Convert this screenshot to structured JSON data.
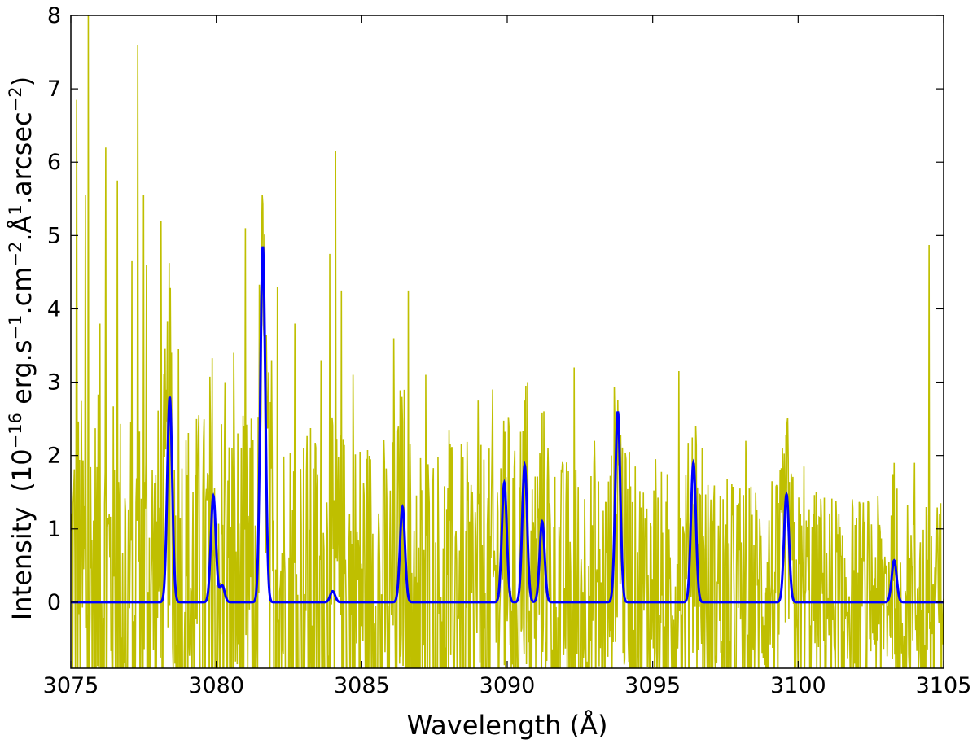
{
  "chart_data": {
    "type": "line",
    "title": "",
    "xlim": [
      3075,
      3105
    ],
    "ylim": [
      -0.9,
      8
    ],
    "xticks": [
      3075,
      3080,
      3085,
      3090,
      3095,
      3100,
      3105
    ],
    "yticks": [
      0,
      1,
      2,
      3,
      4,
      5,
      6,
      7,
      8
    ],
    "xticklabels": [
      "3075",
      "3080",
      "3085",
      "3090",
      "3095",
      "3100",
      "3105"
    ],
    "yticklabels": [
      "0",
      "1",
      "2",
      "3",
      "4",
      "5",
      "6",
      "7",
      "8"
    ],
    "xlabel": "Wavelength (Å)",
    "ylabel": {
      "intensity": "Intensity",
      "open_paren": "(10",
      "exp16": "−16",
      "erg": " erg.s",
      "exp1a": "−1",
      "cm": ".cm",
      "exp2a": "−2",
      "angstrom": ".Å",
      "exp1b": "1",
      "arcsec": ".arcsec",
      "exp2b": "−2",
      "close_paren": ")"
    },
    "grid": false,
    "colors": {
      "observed": "#bfbf00",
      "model": "#0000ff"
    },
    "observed_spikes": [
      {
        "x": 3075.2,
        "y": 6.85
      },
      {
        "x": 3075.5,
        "y": 5.55
      },
      {
        "x": 3075.6,
        "y": 8.0
      },
      {
        "x": 3076.0,
        "y": 3.8
      },
      {
        "x": 3076.2,
        "y": 6.2
      },
      {
        "x": 3076.6,
        "y": 5.75
      },
      {
        "x": 3077.1,
        "y": 4.65
      },
      {
        "x": 3077.3,
        "y": 7.6
      },
      {
        "x": 3077.5,
        "y": 5.55
      },
      {
        "x": 3077.6,
        "y": 4.6
      },
      {
        "x": 3078.1,
        "y": 5.2
      },
      {
        "x": 3078.7,
        "y": 3.45
      },
      {
        "x": 3079.4,
        "y": 2.55
      },
      {
        "x": 3080.3,
        "y": 3.0
      },
      {
        "x": 3080.6,
        "y": 3.4
      },
      {
        "x": 3081.0,
        "y": 5.1
      },
      {
        "x": 3081.9,
        "y": 3.3
      },
      {
        "x": 3082.1,
        "y": 4.3
      },
      {
        "x": 3082.7,
        "y": 3.8
      },
      {
        "x": 3083.6,
        "y": 3.3
      },
      {
        "x": 3083.9,
        "y": 4.75
      },
      {
        "x": 3084.1,
        "y": 6.15
      },
      {
        "x": 3084.3,
        "y": 4.25
      },
      {
        "x": 3084.7,
        "y": 3.1
      },
      {
        "x": 3086.1,
        "y": 3.6
      },
      {
        "x": 3086.6,
        "y": 4.25
      },
      {
        "x": 3087.2,
        "y": 3.1
      },
      {
        "x": 3088.0,
        "y": 2.35
      },
      {
        "x": 3089.0,
        "y": 2.75
      },
      {
        "x": 3089.5,
        "y": 2.9
      },
      {
        "x": 3090.6,
        "y": 2.75
      },
      {
        "x": 3090.7,
        "y": 3.0
      },
      {
        "x": 3091.4,
        "y": 2.1
      },
      {
        "x": 3092.3,
        "y": 3.2
      },
      {
        "x": 3093.0,
        "y": 2.2
      },
      {
        "x": 3094.2,
        "y": 2.05
      },
      {
        "x": 3095.1,
        "y": 1.95
      },
      {
        "x": 3095.9,
        "y": 3.15
      },
      {
        "x": 3096.7,
        "y": 2.1
      },
      {
        "x": 3098.2,
        "y": 2.2
      },
      {
        "x": 3099.1,
        "y": 1.65
      },
      {
        "x": 3100.2,
        "y": 1.85
      },
      {
        "x": 3101.4,
        "y": 1.2
      },
      {
        "x": 3103.3,
        "y": 1.9
      },
      {
        "x": 3104.0,
        "y": 1.9
      },
      {
        "x": 3104.5,
        "y": 4.87
      },
      {
        "x": 3104.9,
        "y": 1.35
      }
    ],
    "model_lines": [
      {
        "x": 3078.4,
        "y": 2.8
      },
      {
        "x": 3079.9,
        "y": 1.45
      },
      {
        "x": 3080.2,
        "y": 0.23
      },
      {
        "x": 3081.6,
        "y": 4.85
      },
      {
        "x": 3084.0,
        "y": 0.15
      },
      {
        "x": 3086.4,
        "y": 1.3
      },
      {
        "x": 3089.9,
        "y": 1.63
      },
      {
        "x": 3090.6,
        "y": 1.87
      },
      {
        "x": 3091.2,
        "y": 1.1
      },
      {
        "x": 3093.8,
        "y": 2.6
      },
      {
        "x": 3096.4,
        "y": 1.9
      },
      {
        "x": 3099.6,
        "y": 1.47
      },
      {
        "x": 3103.3,
        "y": 0.57
      }
    ]
  }
}
